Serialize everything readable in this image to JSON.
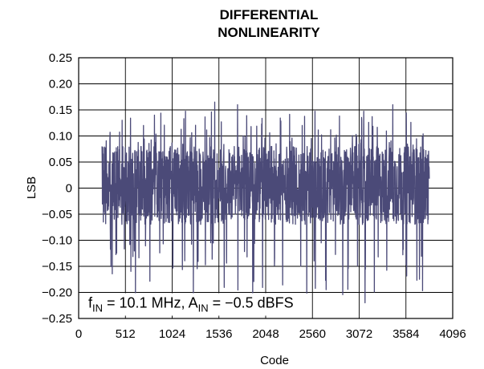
{
  "chart_data": {
    "type": "line",
    "title": [
      "DIFFERENTIAL",
      "NONLINEARITY"
    ],
    "xlabel": "Code",
    "ylabel": "LSB",
    "xlim": [
      0,
      4096
    ],
    "ylim": [
      -0.25,
      0.25
    ],
    "x_ticks": [
      0,
      512,
      1024,
      1536,
      2048,
      2560,
      3072,
      3584,
      4096
    ],
    "y_ticks": [
      0.25,
      0.2,
      0.15,
      0.1,
      0.05,
      0,
      -0.05,
      -0.1,
      -0.15,
      -0.2,
      -0.25
    ],
    "y_tick_labels": [
      "0.25",
      "0.20",
      "0.15",
      "0.10",
      "0.05",
      "0",
      "−0.05",
      "−0.10",
      "−0.15",
      "−0.20",
      "−0.25"
    ],
    "grid": true,
    "series": [
      {
        "color": "#4b4a78",
        "x_start": 256,
        "x_end": 3840,
        "envelope_typical": [
          -0.07,
          0.08
        ],
        "envelope_max": [
          -0.22,
          0.165
        ],
        "notable_points": [
          {
            "x": 1490,
            "y": 0.165
          },
          {
            "x": 3135,
            "y": -0.22
          },
          {
            "x": 3100,
            "y": 0.13
          },
          {
            "x": 830,
            "y": 0.14
          },
          {
            "x": 1740,
            "y": 0.16
          },
          {
            "x": 3440,
            "y": 0.16
          }
        ]
      }
    ],
    "annotation": {
      "f_main": "f",
      "f_sub": "IN",
      "f_rest": " = 10.1 MHz, A",
      "a_sub": "IN",
      "a_rest": " = −0.5 dBFS"
    }
  }
}
